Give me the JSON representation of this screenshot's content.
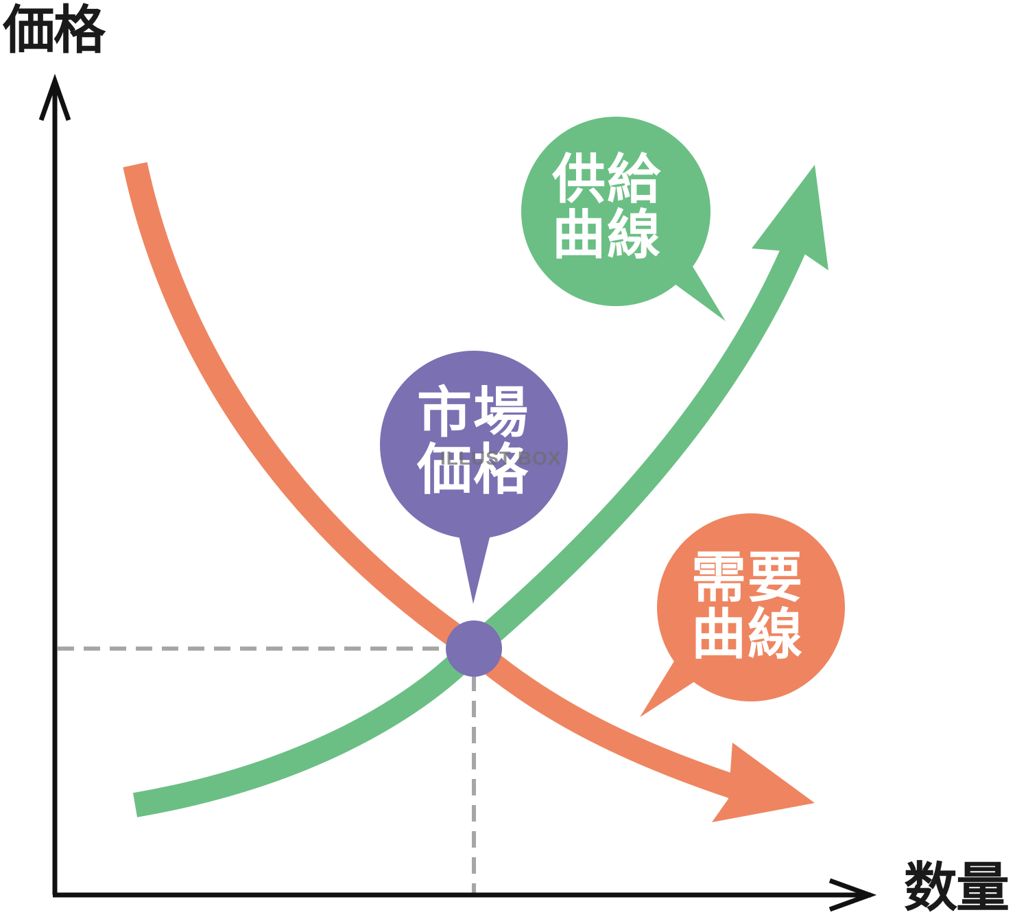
{
  "diagram": {
    "y_axis_label": "価格",
    "x_axis_label": "数量",
    "supply_label_line1": "供給",
    "supply_label_line2": "曲線",
    "demand_label_line1": "需要",
    "demand_label_line2": "曲線",
    "market_label_line1": "市場",
    "market_label_line2": "価格",
    "watermark": "ILLUST BOX"
  },
  "colors": {
    "supply": "#6bbf84",
    "demand": "#ee8560",
    "market": "#7b70b2",
    "axis": "#111111",
    "guide": "#a6a6a6"
  }
}
